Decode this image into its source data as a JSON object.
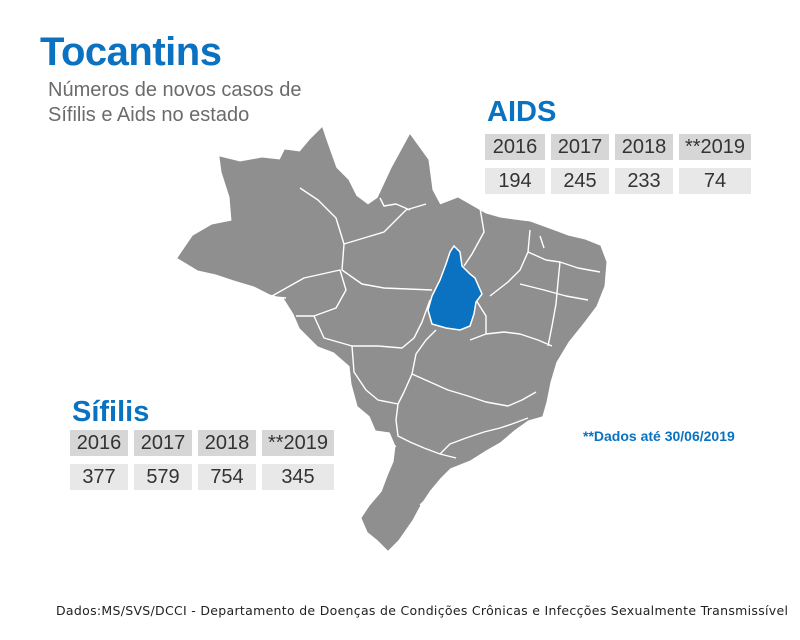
{
  "header": {
    "title": "Tocantins",
    "subtitle": "Números de novos casos de Sífilis e Aids no estado"
  },
  "map": {
    "highlighted_state": "Tocantins",
    "highlight_color": "#0a72c0",
    "base_color": "#8f8f8f",
    "border_color": "#ffffff"
  },
  "aids": {
    "title": "AIDS",
    "years": [
      "2016",
      "2017",
      "2018",
      "**2019"
    ],
    "values": [
      "194",
      "245",
      "233",
      "74"
    ]
  },
  "sifilis": {
    "title": "Sífilis",
    "years": [
      "2016",
      "2017",
      "2018",
      "**2019"
    ],
    "values": [
      "377",
      "579",
      "754",
      "345"
    ]
  },
  "note": "**Dados até 30/06/2019",
  "source": "Dados:MS/SVS/DCCI - Departamento de Doenças de Condições Crônicas e Infecções Sexualmente Transmissível"
}
